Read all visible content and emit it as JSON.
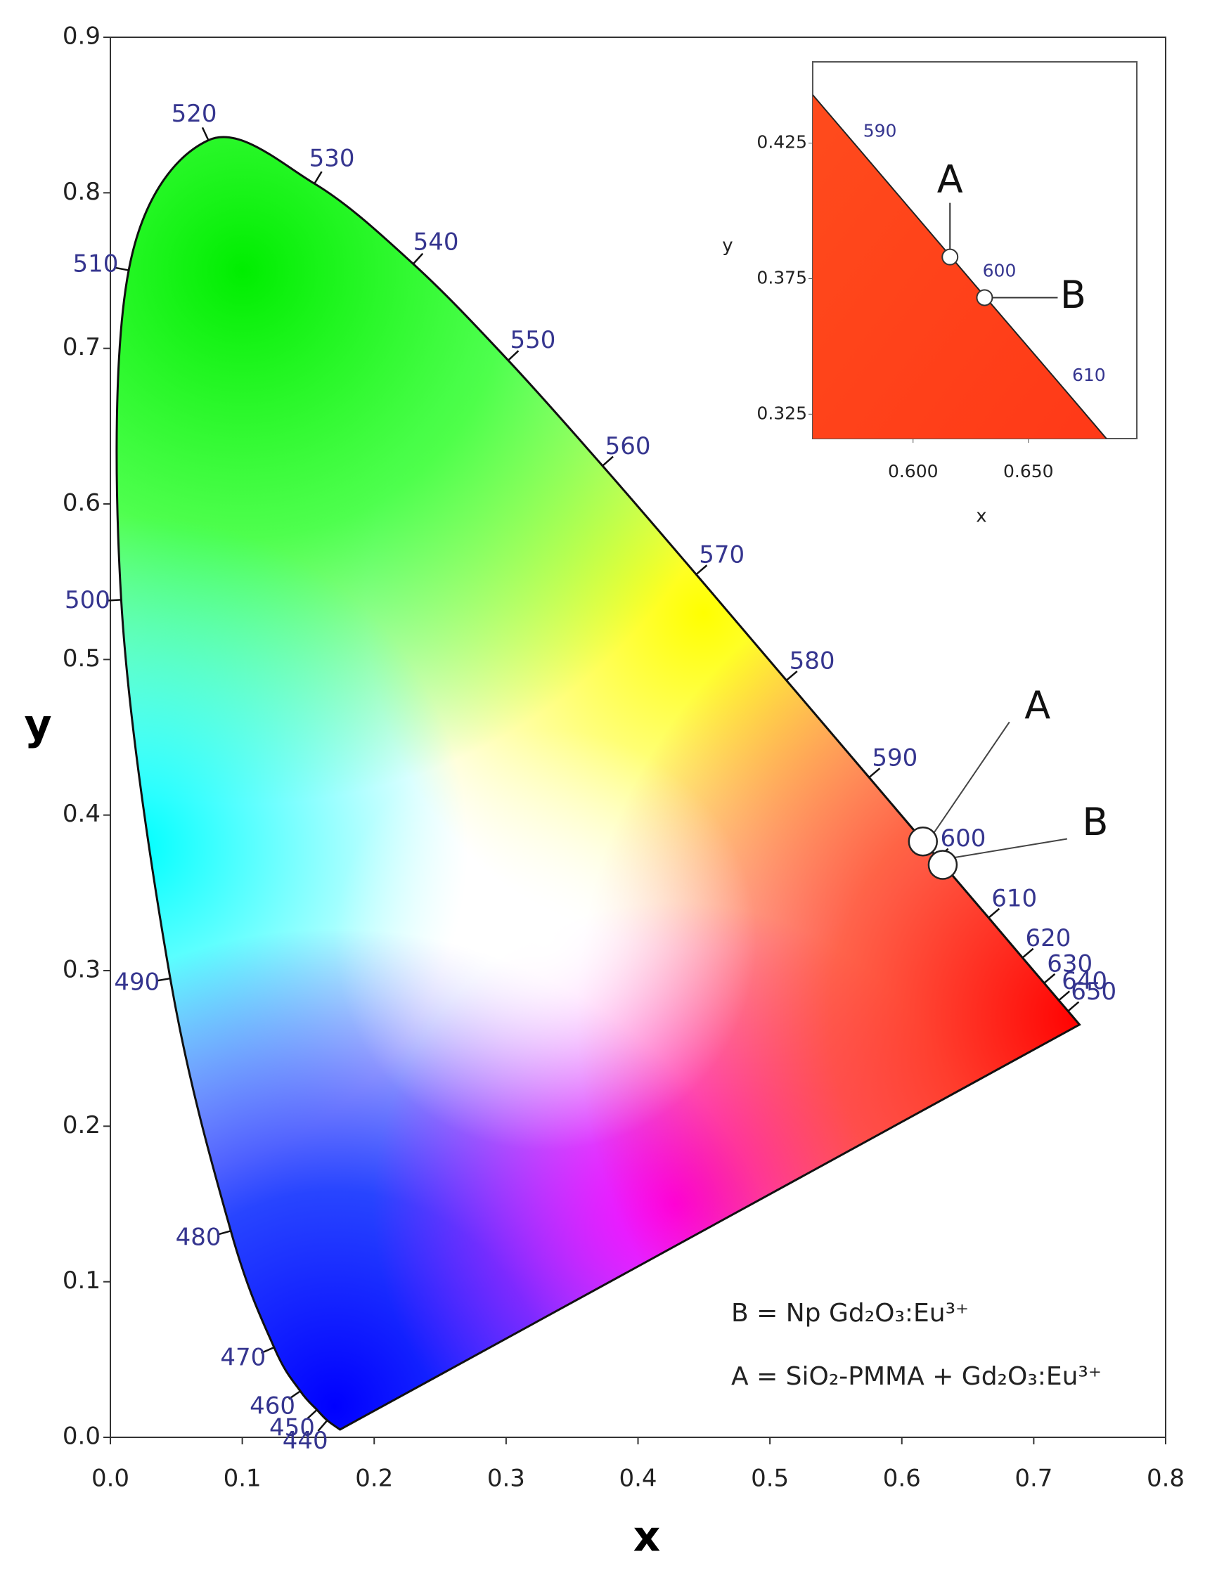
{
  "chart_data": {
    "type": "chromaticity",
    "xlabel": "x",
    "ylabel": "y",
    "xlim": [
      0,
      0.8
    ],
    "ylim": [
      0,
      0.9
    ],
    "xticks": [
      {
        "value": 0,
        "label": "0.0"
      },
      0.1,
      0.2,
      0.3,
      0.4,
      0.5,
      0.6,
      0.7,
      0.8
    ],
    "yticks": [
      {
        "value": 0,
        "label": "0.0"
      },
      0.1,
      0.2,
      0.3,
      0.4,
      0.5,
      0.6,
      0.7,
      0.8,
      0.9
    ],
    "locus": {
      "wavelengths": [
        null,
        440,
        450,
        460,
        470,
        480,
        490,
        500,
        510,
        520,
        530,
        540,
        550,
        560,
        570,
        580,
        590,
        600,
        610,
        620,
        630,
        640,
        650,
        null
      ],
      "x": [
        0.1741,
        0.1644,
        0.1566,
        0.144,
        0.1241,
        0.0913,
        0.0454,
        0.0082,
        0.0139,
        0.0743,
        0.1547,
        0.2296,
        0.3016,
        0.3731,
        0.4441,
        0.5125,
        0.5752,
        0.627,
        0.6658,
        0.6915,
        0.7079,
        0.719,
        0.726,
        0.7347
      ],
      "y": [
        0.005,
        0.0109,
        0.0177,
        0.0297,
        0.0578,
        0.1327,
        0.295,
        0.5384,
        0.7502,
        0.8338,
        0.8059,
        0.7543,
        0.6923,
        0.6245,
        0.5547,
        0.4866,
        0.4242,
        0.3725,
        0.334,
        0.3083,
        0.292,
        0.2809,
        0.274,
        0.2653
      ]
    },
    "points": {
      "labels": [
        "A",
        "B"
      ],
      "x": [
        0.616,
        0.631
      ],
      "y": [
        0.383,
        0.368
      ]
    },
    "legend": [
      "B = Np Gd₂O₃:Eu³⁺",
      "A = SiO₂-PMMA + Gd₂O₃:Eu³⁺"
    ],
    "inset": {
      "xlabel": "x",
      "ylabel": "y",
      "xlim": [
        0.5565,
        0.697
      ],
      "ylim": [
        0.316,
        0.455
      ],
      "xticks": [
        {
          "value": 0.6,
          "label": "0.600"
        },
        {
          "value": 0.65,
          "label": "0.650"
        }
      ],
      "yticks": [
        0.325,
        0.375,
        0.425
      ]
    }
  }
}
